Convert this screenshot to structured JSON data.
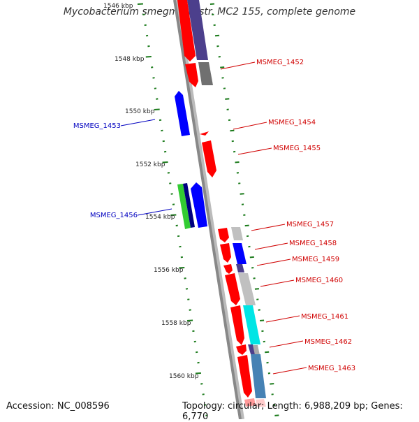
{
  "title": "Mycobacterium smegmatis str. MC2 155, complete genome",
  "footer": {
    "accession": "Accession: NC_008596",
    "topology": "Topology: circular; Length: 6,988,209 bp; Genes: 6,770"
  },
  "colors": {
    "backbone": "#888888",
    "tick": "#1a7a1a",
    "label_red": "#d00000",
    "label_blue": "#0000c0"
  },
  "kbp_ticks": [
    "1546 kbp",
    "1548 kbp",
    "1550 kbp",
    "1552 kbp",
    "1554 kbp",
    "1556 kbp",
    "1558 kbp",
    "1560 kbp"
  ],
  "genes": [
    {
      "name": "MSMEG_1452",
      "strand": "+",
      "color": "#ff0000"
    },
    {
      "name": "MSMEG_1453",
      "strand": "-",
      "color": "#0000ff"
    },
    {
      "name": "MSMEG_1454",
      "strand": "+",
      "color": "#ff0000"
    },
    {
      "name": "MSMEG_1455",
      "strand": "+",
      "color": "#ff0000"
    },
    {
      "name": "MSMEG_1456",
      "strand": "-",
      "color": "#0000ff"
    },
    {
      "name": "MSMEG_1457",
      "strand": "+",
      "color": "#ff0000"
    },
    {
      "name": "MSMEG_1458",
      "strand": "+",
      "color": "#ff0000"
    },
    {
      "name": "MSMEG_1459",
      "strand": "+",
      "color": "#ff0000"
    },
    {
      "name": "MSMEG_1460",
      "strand": "+",
      "color": "#ff0000"
    },
    {
      "name": "MSMEG_1461",
      "strand": "+",
      "color": "#ff0000"
    },
    {
      "name": "MSMEG_1462",
      "strand": "+",
      "color": "#ff0000"
    },
    {
      "name": "MSMEG_1463",
      "strand": "+",
      "color": "#ff0000"
    }
  ]
}
